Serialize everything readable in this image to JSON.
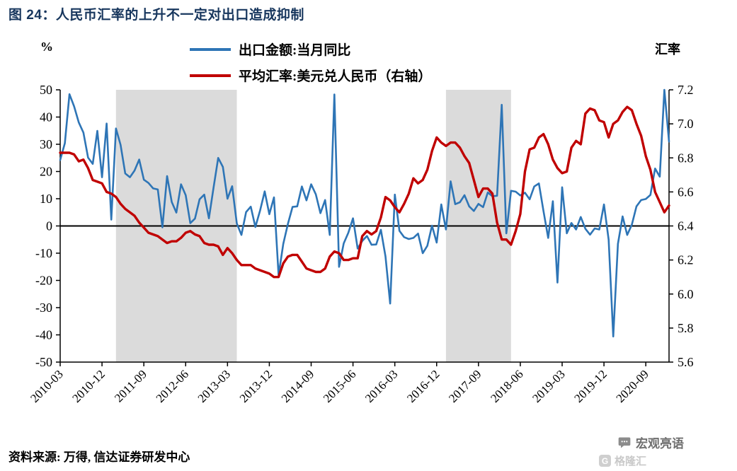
{
  "page": {
    "source_note": "资料来源: 万得, 信达证券研发中心",
    "watermark": "宏观亮语",
    "watermark2": "格隆汇"
  },
  "chart_data": {
    "type": "line",
    "title": "图 24：人民币汇率的上升不一定对出口造成抑制",
    "legend_position": "top",
    "grid": false,
    "colors": {
      "title": "#17365D",
      "band": "#DBDBDB",
      "axis": "#000000",
      "blue": "#2E75B6",
      "red": "#C00000"
    },
    "left_axis": {
      "label": "%",
      "min": -50,
      "max": 50,
      "ticks": [
        "50",
        "40",
        "30",
        "20",
        "10",
        "0",
        "-10",
        "-20",
        "-30",
        "-40",
        "-50"
      ]
    },
    "right_axis": {
      "label": "汇率",
      "min": 5.6,
      "max": 7.2,
      "ticks": [
        "7.2",
        "7.0",
        "6.8",
        "6.6",
        "6.4",
        "6.2",
        "6.0",
        "5.8",
        "5.6"
      ]
    },
    "x_start": "2010-03",
    "x_end": "2021-02",
    "x_tick_labels": [
      "2010-03",
      "2010-12",
      "2011-09",
      "2012-06",
      "2013-03",
      "2013-12",
      "2014-09",
      "2015-06",
      "2016-03",
      "2016-12",
      "2017-09",
      "2018-06",
      "2019-03",
      "2019-12",
      "2020-09"
    ],
    "shaded_regions": [
      {
        "start": "2011-03",
        "end": "2013-05"
      },
      {
        "start": "2017-02",
        "end": "2018-04"
      }
    ],
    "series": [
      {
        "name": "出口金额:当月同比",
        "axis": "left",
        "color": "#2E75B6",
        "width": 2.6,
        "start": "2010-03",
        "values": [
          24.2,
          30.4,
          48.4,
          43.9,
          38.0,
          34.3,
          25.1,
          22.8,
          34.9,
          17.9,
          37.6,
          2.3,
          35.8,
          29.8,
          19.3,
          17.9,
          20.3,
          24.4,
          17.0,
          15.8,
          13.8,
          13.4,
          -0.5,
          18.3,
          8.8,
          4.9,
          15.3,
          11.3,
          1.0,
          2.7,
          9.8,
          11.5,
          2.8,
          14.0,
          25.0,
          21.7,
          10.0,
          14.6,
          0.9,
          -3.3,
          5.1,
          7.1,
          -0.4,
          5.6,
          12.7,
          4.3,
          10.5,
          -18.1,
          -6.6,
          0.8,
          7.0,
          7.2,
          14.5,
          9.4,
          15.3,
          11.6,
          4.7,
          9.5,
          -3.3,
          48.3,
          -15.0,
          -6.4,
          -2.5,
          2.8,
          -8.3,
          -5.5,
          -3.7,
          -6.9,
          -6.8,
          -1.4,
          -11.2,
          -28.5,
          11.5,
          -1.8,
          -4.1,
          -4.8,
          -4.4,
          -2.8,
          -10.0,
          -7.3,
          0.1,
          -6.1,
          7.9,
          -1.3,
          16.4,
          8.0,
          8.7,
          11.3,
          7.2,
          5.5,
          8.1,
          6.9,
          12.3,
          10.9,
          11.1,
          44.5,
          -2.7,
          12.9,
          12.6,
          11.2,
          12.2,
          9.8,
          14.5,
          15.6,
          5.4,
          -4.4,
          9.1,
          -20.8,
          14.2,
          -2.7,
          1.1,
          -1.3,
          3.3,
          -1.0,
          -3.2,
          -0.9,
          -1.3,
          7.9,
          -5.0,
          -40.6,
          -6.6,
          3.5,
          -3.3,
          0.5,
          7.2,
          9.5,
          9.9,
          11.4,
          21.1,
          18.1,
          60.6,
          31.0
        ]
      },
      {
        "name": "平均汇率:美元兑人民币（右轴）",
        "axis": "right",
        "color": "#C00000",
        "width": 3.4,
        "start": "2010-03",
        "values": [
          6.83,
          6.83,
          6.83,
          6.82,
          6.78,
          6.79,
          6.74,
          6.67,
          6.66,
          6.65,
          6.6,
          6.59,
          6.57,
          6.53,
          6.5,
          6.48,
          6.46,
          6.42,
          6.39,
          6.36,
          6.35,
          6.34,
          6.32,
          6.3,
          6.31,
          6.31,
          6.33,
          6.36,
          6.37,
          6.35,
          6.34,
          6.3,
          6.29,
          6.29,
          6.28,
          6.23,
          6.27,
          6.24,
          6.2,
          6.17,
          6.17,
          6.17,
          6.15,
          6.14,
          6.13,
          6.12,
          6.1,
          6.1,
          6.18,
          6.22,
          6.23,
          6.23,
          6.19,
          6.15,
          6.14,
          6.13,
          6.13,
          6.15,
          6.22,
          6.25,
          6.24,
          6.2,
          6.2,
          6.21,
          6.21,
          6.34,
          6.37,
          6.35,
          6.37,
          6.45,
          6.57,
          6.55,
          6.51,
          6.48,
          6.53,
          6.59,
          6.68,
          6.65,
          6.67,
          6.73,
          6.84,
          6.92,
          6.89,
          6.87,
          6.89,
          6.89,
          6.86,
          6.81,
          6.77,
          6.67,
          6.57,
          6.62,
          6.62,
          6.59,
          6.42,
          6.32,
          6.32,
          6.29,
          6.37,
          6.47,
          6.72,
          6.85,
          6.86,
          6.92,
          6.94,
          6.88,
          6.79,
          6.74,
          6.71,
          6.72,
          6.86,
          6.9,
          6.88,
          7.06,
          7.09,
          7.08,
          7.02,
          7.01,
          6.92,
          7.0,
          7.02,
          7.07,
          7.1,
          7.08,
          7.0,
          6.93,
          6.81,
          6.73,
          6.6,
          6.54,
          6.48,
          6.52
        ]
      }
    ]
  }
}
